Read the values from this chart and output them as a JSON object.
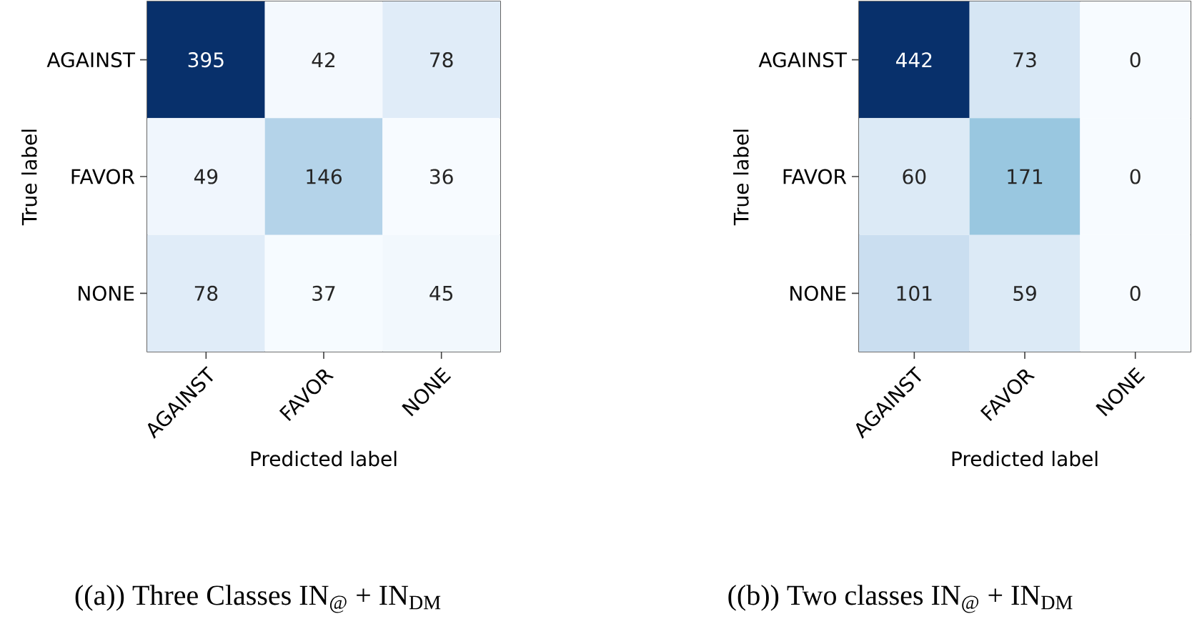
{
  "chart_data": [
    {
      "type": "heatmap",
      "categories": [
        "AGAINST",
        "FAVOR",
        "NONE"
      ],
      "y_categories": [
        "AGAINST",
        "FAVOR",
        "NONE"
      ],
      "xlabel": "Predicted label",
      "ylabel": "True label",
      "cells": [
        [
          395,
          42,
          78
        ],
        [
          49,
          146,
          36
        ],
        [
          78,
          37,
          45
        ]
      ],
      "data_labels": true,
      "annotations": [
        "((a)) Three Classes IN$_{@}$ + IN$_{DM}$"
      ]
    },
    {
      "type": "heatmap",
      "categories": [
        "AGAINST",
        "FAVOR",
        "NONE"
      ],
      "y_categories": [
        "AGAINST",
        "FAVOR",
        "NONE"
      ],
      "xlabel": "Predicted label",
      "ylabel": "True label",
      "cells": [
        [
          442,
          73,
          0
        ],
        [
          60,
          171,
          0
        ],
        [
          101,
          59,
          0
        ]
      ],
      "data_labels": true,
      "annotations": [
        "((b)) Two classes IN$_{@}$ + IN$_{DM}$"
      ]
    }
  ]
}
